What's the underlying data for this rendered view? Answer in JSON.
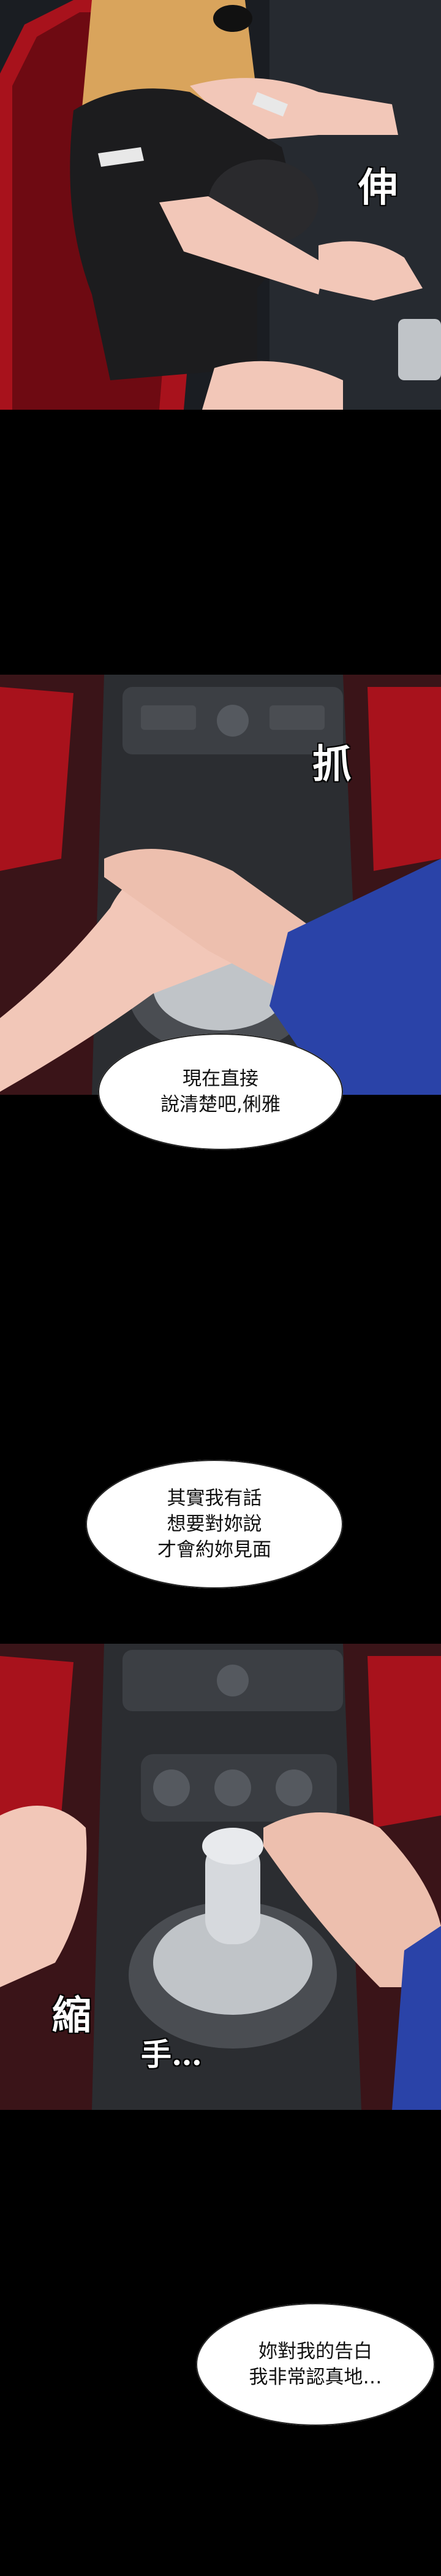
{
  "panels": {
    "panel1": {
      "sfx": "伸"
    },
    "panel2": {
      "sfx": "抓"
    },
    "panel3": {
      "sfx_a": "縮",
      "sfx_b": "手…"
    }
  },
  "bubbles": {
    "bubble1": {
      "lines": [
        "現在直接",
        "說清楚吧,俐雅"
      ]
    },
    "bubble2": {
      "lines": [
        "其實我有話",
        "想要對妳說",
        "才會約妳見面"
      ]
    },
    "bubble3": {
      "lines": [
        "妳對我的告白",
        "我非常認真地…"
      ]
    }
  },
  "colors": {
    "background": "#000000",
    "bubble": "#ffffff",
    "seat_red": "#a8121c",
    "sleeve_blue": "#2a43a8",
    "dress": "#1c1c1e",
    "hair": "#d9a45c",
    "skin": "#f2c7b8"
  }
}
